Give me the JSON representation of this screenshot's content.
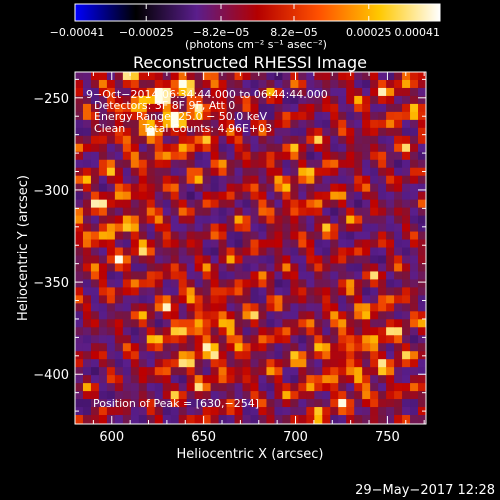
{
  "chart_data": {
    "type": "heatmap",
    "title": "Reconstructed RHESSI Image",
    "xlabel": "Heliocentric X (arcsec)",
    "ylabel": "Heliocentric Y (arcsec)",
    "xlim": [
      580,
      771
    ],
    "ylim": [
      -427,
      -236
    ],
    "x_ticks": [
      600,
      650,
      700,
      750
    ],
    "y_ticks": [
      -250,
      -300,
      -350,
      -400
    ],
    "x_tick_labels": [
      "600",
      "650",
      "700",
      "750"
    ],
    "y_tick_labels": [
      "−250",
      "−300",
      "−350",
      "−400"
    ],
    "colorbar": {
      "range": [
        -0.00041,
        0.00041
      ],
      "tick_values": [
        -0.00041,
        -0.00025,
        -8.2e-05,
        8.2e-05,
        0.00025,
        0.00041
      ],
      "tick_labels": [
        "−0.00041",
        "−0.00025",
        "−8.2e−05",
        "8.2e−05",
        "0.00025",
        "0.00041"
      ],
      "unit_label": "(photons cm⁻² s⁻¹ asec⁻²)",
      "colormap_stops": [
        "#0000ff",
        "#000000",
        "#5a1e8c",
        "#b40000",
        "#ff5000",
        "#ffc800",
        "#ffffff"
      ]
    },
    "annotations": [
      "9−Oct−2014 06:34:44.000 to 06:44:44.000",
      "Detectors: 3F 8F 9F, Att 0",
      "Energy Range: 25.0 − 50.0 keV",
      "Clean     Total Counts: 4.96E+03"
    ],
    "peak_label": "Position of Peak = [630,−254]",
    "peak": {
      "x": 630,
      "y": -254
    }
  },
  "footer_date": "29−May−2017 12:28"
}
